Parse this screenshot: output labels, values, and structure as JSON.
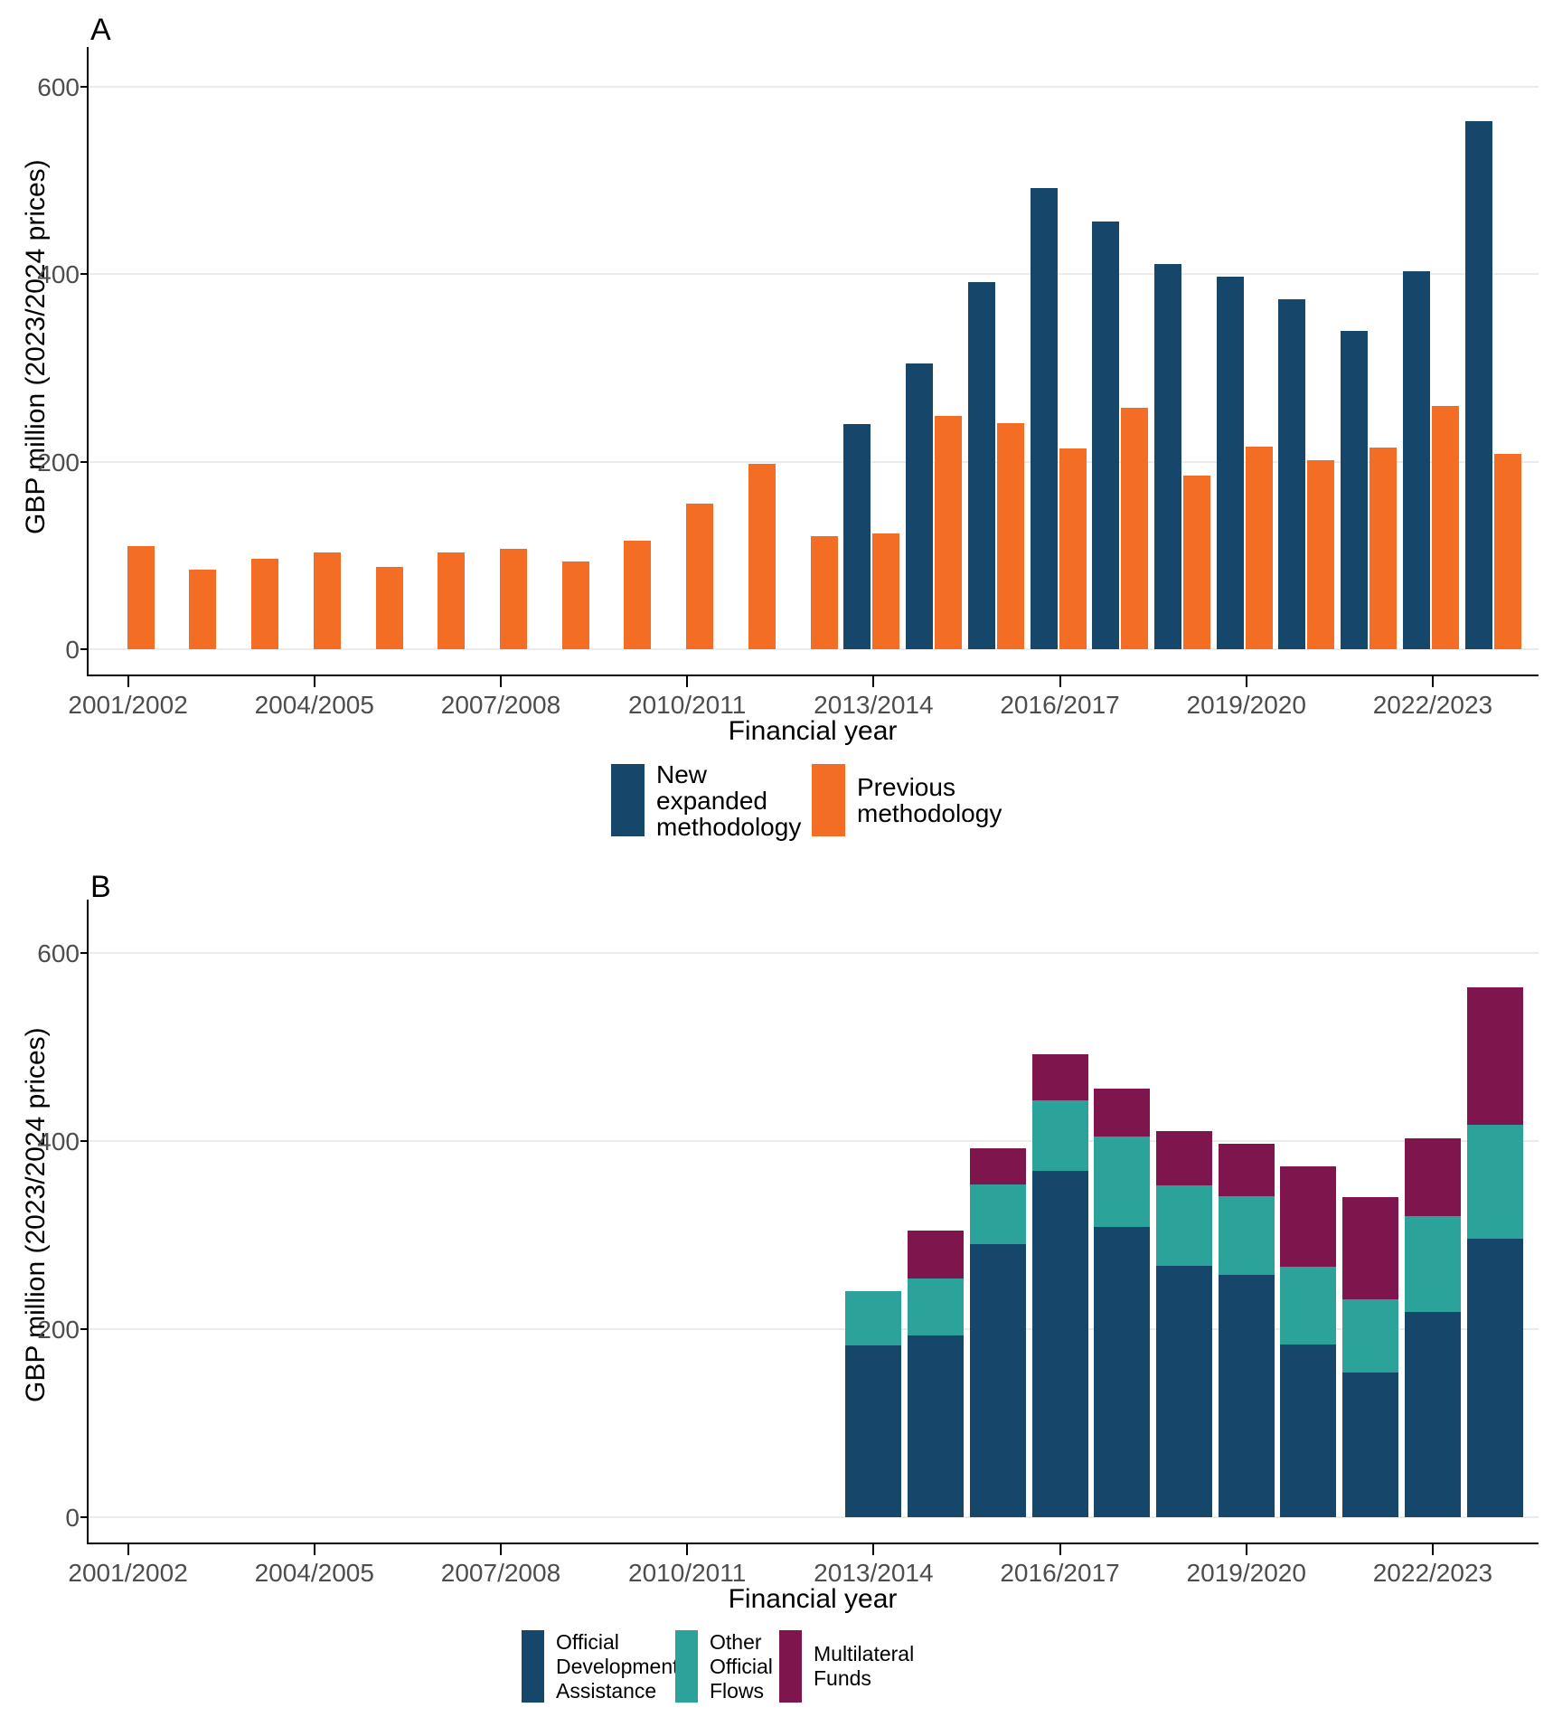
{
  "colors": {
    "new_methodology": "#17466B",
    "previous_methodology": "#F36D25",
    "official_development_assistance": "#17466B",
    "other_official_flows": "#2BA29A",
    "multilateral_funds": "#7F154D",
    "gridline": "#EBEBEB",
    "axis_text": "#4D4D4D",
    "axis_line": "#000000"
  },
  "panel_a": {
    "tag": "A",
    "y_axis_title": "GBP million (2023/2024 prices)",
    "x_axis_title": "Financial year"
  },
  "panel_b": {
    "tag": "B",
    "y_axis_title": "GBP million (2023/2024 prices)",
    "x_axis_title": "Financial year"
  },
  "chart_data": [
    {
      "panel": "A",
      "type": "bar",
      "subtype": "grouped",
      "title": "",
      "xlabel": "Financial year",
      "ylabel": "GBP million (2023/2024 prices)",
      "ylim": [
        0,
        620
      ],
      "yticks": [
        0,
        200,
        400,
        600
      ],
      "grid": "horizontal major gridlines only",
      "legend_position": "bottom",
      "categories": [
        "2001/2002",
        "2002/2003",
        "2003/2004",
        "2004/2005",
        "2005/2006",
        "2006/2007",
        "2007/2008",
        "2008/2009",
        "2009/2010",
        "2010/2011",
        "2011/2012",
        "2012/2013",
        "2013/2014",
        "2014/2015",
        "2015/2016",
        "2016/2017",
        "2017/2018",
        "2018/2019",
        "2019/2020",
        "2020/2021",
        "2021/2022",
        "2022/2023",
        "2023/2024"
      ],
      "x_tick_labels_shown": [
        "2001/2002",
        "2004/2005",
        "2007/2008",
        "2010/2011",
        "2013/2014",
        "2016/2017",
        "2019/2020",
        "2022/2023"
      ],
      "series": [
        {
          "name": "New expanded methodology",
          "legend_lines": "New\nexpanded\nmethodology",
          "color": "#17466B",
          "values": [
            null,
            null,
            null,
            null,
            null,
            null,
            null,
            null,
            null,
            null,
            null,
            null,
            240,
            305,
            392,
            492,
            456,
            411,
            397,
            373,
            340,
            403,
            563
          ]
        },
        {
          "name": "Previous methodology",
          "legend_lines": "Previous\nmethodology",
          "color": "#F36D25",
          "values": [
            110,
            85,
            96,
            103,
            88,
            103,
            107,
            94,
            116,
            155,
            198,
            121,
            123,
            249,
            241,
            214,
            258,
            185,
            216,
            202,
            215,
            259,
            208
          ]
        }
      ]
    },
    {
      "panel": "B",
      "type": "bar",
      "subtype": "stacked",
      "title": "",
      "xlabel": "Financial year",
      "ylabel": "GBP million (2023/2024 prices)",
      "ylim": [
        0,
        620
      ],
      "yticks": [
        0,
        200,
        400,
        600
      ],
      "grid": "horizontal major gridlines only",
      "legend_position": "bottom",
      "categories": [
        "2001/2002",
        "2002/2003",
        "2003/2004",
        "2004/2005",
        "2005/2006",
        "2006/2007",
        "2007/2008",
        "2008/2009",
        "2009/2010",
        "2010/2011",
        "2011/2012",
        "2012/2013",
        "2013/2014",
        "2014/2015",
        "2015/2016",
        "2016/2017",
        "2017/2018",
        "2018/2019",
        "2019/2020",
        "2020/2021",
        "2021/2022",
        "2022/2023",
        "2023/2024"
      ],
      "x_tick_labels_shown": [
        "2001/2002",
        "2004/2005",
        "2007/2008",
        "2010/2011",
        "2013/2014",
        "2016/2017",
        "2019/2020",
        "2022/2023"
      ],
      "series": [
        {
          "name": "Official Development Assistance",
          "legend_lines": "Official\nDevelopment\nAssistance",
          "color": "#17466B",
          "values": [
            null,
            null,
            null,
            null,
            null,
            null,
            null,
            null,
            null,
            null,
            null,
            null,
            183,
            193,
            290,
            368,
            309,
            267,
            258,
            184,
            154,
            218,
            296
          ]
        },
        {
          "name": "Other Official Flows",
          "legend_lines": "Other\nOfficial\nFlows",
          "color": "#2BA29A",
          "values": [
            null,
            null,
            null,
            null,
            null,
            null,
            null,
            null,
            null,
            null,
            null,
            null,
            57,
            61,
            64,
            75,
            96,
            86,
            83,
            82,
            78,
            102,
            121
          ]
        },
        {
          "name": "Multilateral Funds",
          "legend_lines": "Multilateral\nFunds",
          "color": "#7F154D",
          "values": [
            null,
            null,
            null,
            null,
            null,
            null,
            null,
            null,
            null,
            null,
            null,
            null,
            0,
            51,
            38,
            49,
            51,
            58,
            56,
            107,
            108,
            83,
            146
          ]
        }
      ]
    }
  ]
}
